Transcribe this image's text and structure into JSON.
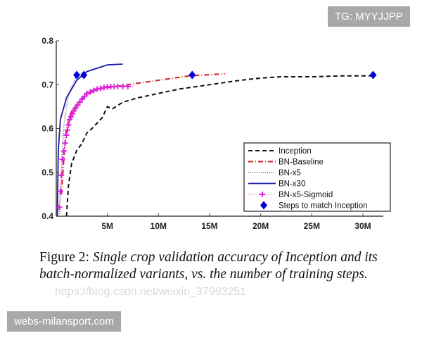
{
  "chart_data": {
    "type": "line",
    "xlabel": "",
    "ylabel": "",
    "xlim": [
      0,
      32
    ],
    "ylim": [
      0.4,
      0.8
    ],
    "xticks": [
      {
        "v": 5,
        "label": "5M"
      },
      {
        "v": 10,
        "label": "10M"
      },
      {
        "v": 15,
        "label": "15M"
      },
      {
        "v": 20,
        "label": "20M"
      },
      {
        "v": 25,
        "label": "25M"
      },
      {
        "v": 30,
        "label": "30M"
      }
    ],
    "yticks": [
      {
        "v": 0.4,
        "label": "0.4"
      },
      {
        "v": 0.5,
        "label": "0.5"
      },
      {
        "v": 0.6,
        "label": "0.6"
      },
      {
        "v": 0.7,
        "label": "0.7"
      },
      {
        "v": 0.8,
        "label": "0.8"
      }
    ],
    "legend_position": "bottom-right",
    "series": [
      {
        "name": "Inception",
        "color": "#111111",
        "style": "dashed",
        "x": [
          1.0,
          1.2,
          1.5,
          2,
          2.5,
          3,
          3.5,
          4.5,
          5.0,
          5.5,
          6.5,
          8,
          10,
          12,
          15,
          18,
          20,
          22,
          25,
          28,
          31
        ],
        "y": [
          0.4,
          0.47,
          0.52,
          0.55,
          0.565,
          0.59,
          0.6,
          0.625,
          0.65,
          0.645,
          0.66,
          0.67,
          0.68,
          0.69,
          0.7,
          0.71,
          0.715,
          0.718,
          0.718,
          0.72,
          0.72
        ]
      },
      {
        "name": "BN-Baseline",
        "color": "#cc2222",
        "style": "dashdot",
        "x": [
          0.5,
          0.8,
          1,
          1.5,
          2.5,
          4,
          7,
          10,
          13,
          16.5
        ],
        "y": [
          0.45,
          0.55,
          0.6,
          0.64,
          0.67,
          0.69,
          0.7,
          0.71,
          0.72,
          0.725
        ]
      },
      {
        "name": "BN-x5",
        "color": "#888888",
        "style": "dotted",
        "x": [
          0.3,
          0.5,
          0.7,
          1.2,
          2
        ],
        "y": [
          0.4,
          0.5,
          0.6,
          0.68,
          0.72
        ]
      },
      {
        "name": "BN-x30",
        "color": "#1a1aaa",
        "style": "solid",
        "x": [
          0.1,
          0.2,
          0.4,
          1,
          2,
          3,
          5,
          6.5
        ],
        "y": [
          0.4,
          0.55,
          0.62,
          0.67,
          0.71,
          0.73,
          0.745,
          0.747
        ]
      },
      {
        "name": "BN-x5-Sigmoid",
        "color": "#e020e0",
        "style": "plus",
        "x": [
          0.3,
          0.6,
          1,
          1.3,
          1.7,
          2.3,
          3,
          4,
          5,
          6,
          7.5
        ],
        "y": [
          0.42,
          0.53,
          0.585,
          0.62,
          0.64,
          0.66,
          0.68,
          0.69,
          0.695,
          0.696,
          0.696
        ]
      },
      {
        "name": "Steps to match Inception",
        "color": "#0000dd",
        "style": "diamond",
        "x": [
          2.0,
          2.7,
          13.3,
          31
        ],
        "y": [
          0.722,
          0.722,
          0.722,
          0.722
        ]
      }
    ]
  },
  "caption": {
    "label": "Figure 2:",
    "text": "Single crop validation accuracy of Inception and its batch-normalized variants, vs.  the number of training steps."
  },
  "watermarks": {
    "csdn": "https://blog.csdn.net/weixin_37993251",
    "top": "TG: MYYJJPP",
    "bottom": "webs-milansport.com"
  }
}
